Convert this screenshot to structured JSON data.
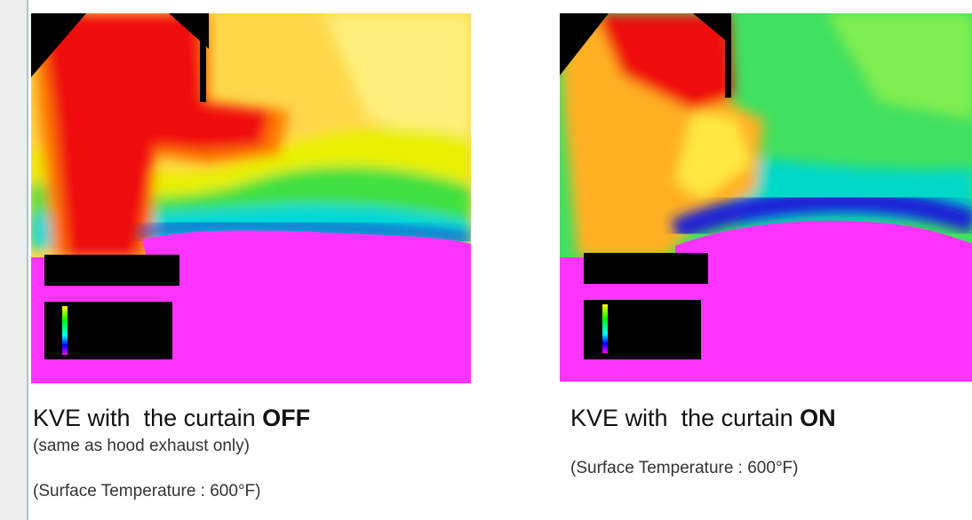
{
  "panels": [
    {
      "caption": {
        "prefix": "KVE with",
        "middle": "the curtain",
        "state": "OFF"
      },
      "notes": [
        "(same as hood exhaust only)",
        "(Surface Temperature : 600°F)"
      ]
    },
    {
      "caption": {
        "prefix": "KVE with",
        "middle": "the curtain",
        "state": "ON"
      },
      "notes": [
        "(Surface Temperature : 600°F)"
      ]
    }
  ]
}
